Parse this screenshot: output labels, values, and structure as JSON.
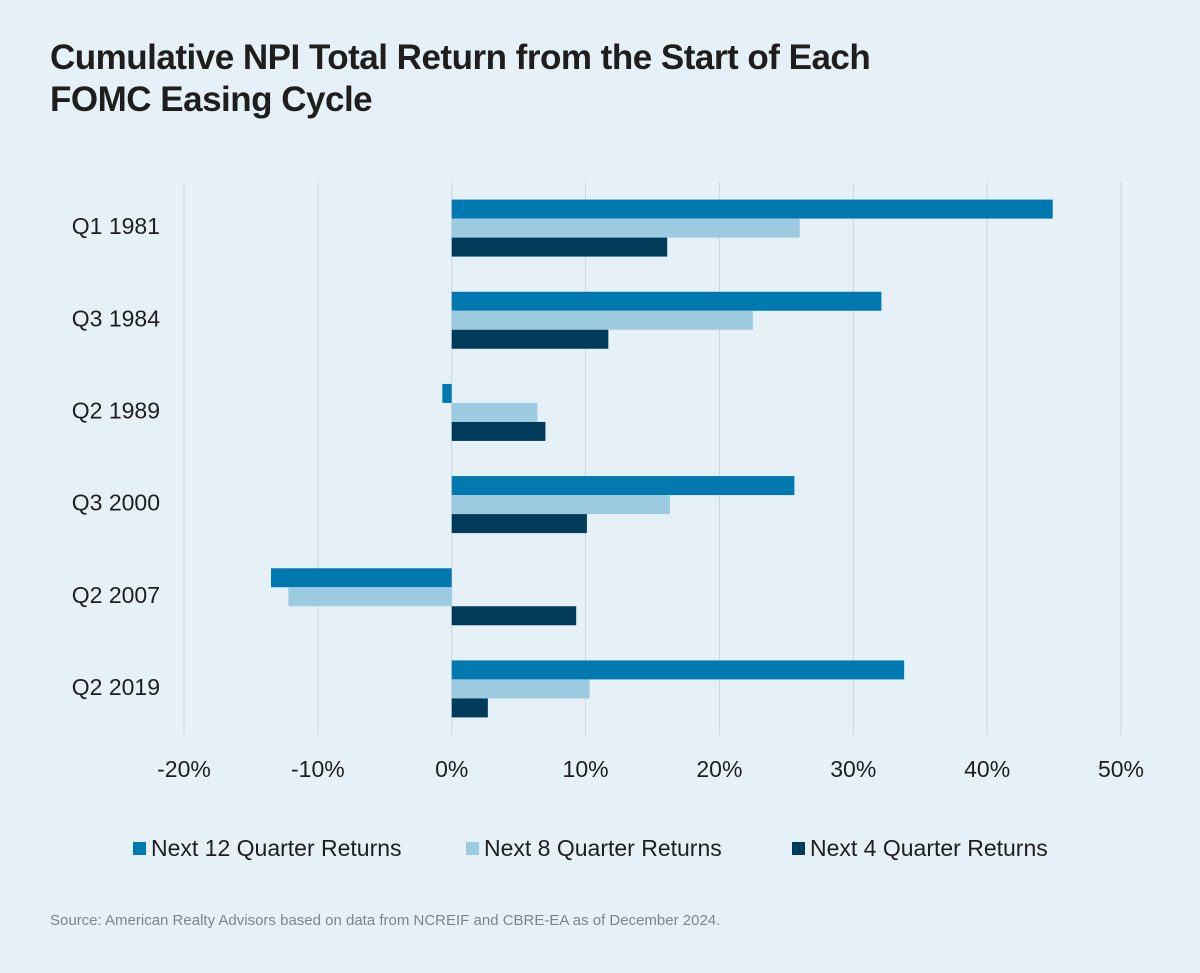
{
  "chart_data": {
    "type": "bar",
    "orientation": "horizontal",
    "title": "Cumulative NPI Total Return from the Start of Each FOMC Easing Cycle",
    "categories": [
      "Q1 1981",
      "Q3 1984",
      "Q2 1989",
      "Q3 2000",
      "Q2 2007",
      "Q2 2019"
    ],
    "series": [
      {
        "name": "Next 12 Quarter Returns",
        "color": "#0079b0",
        "values": [
          44.9,
          32.1,
          -0.7,
          25.6,
          -13.5,
          33.8
        ]
      },
      {
        "name": "Next 8 Quarter Returns",
        "color": "#9ccae0",
        "values": [
          26.0,
          22.5,
          6.4,
          16.3,
          -12.2,
          10.3
        ]
      },
      {
        "name": "Next 4 Quarter Returns",
        "color": "#003c5a",
        "values": [
          16.1,
          11.7,
          7.0,
          10.1,
          9.3,
          2.7
        ]
      }
    ],
    "xlim": [
      -20,
      50
    ],
    "xticks": [
      {
        "value": -20,
        "label": "-20%"
      },
      {
        "value": -10,
        "label": "-10%"
      },
      {
        "value": 0,
        "label": "0%"
      },
      {
        "value": 10,
        "label": "10%"
      },
      {
        "value": 20,
        "label": "20%"
      },
      {
        "value": 30,
        "label": "30%"
      },
      {
        "value": 40,
        "label": "40%"
      },
      {
        "value": 50,
        "label": "50%"
      }
    ],
    "grid": true,
    "legend": "bottom",
    "source": "Source: American Realty Advisors based on data from NCREIF and CBRE-EA as of December 2024."
  }
}
